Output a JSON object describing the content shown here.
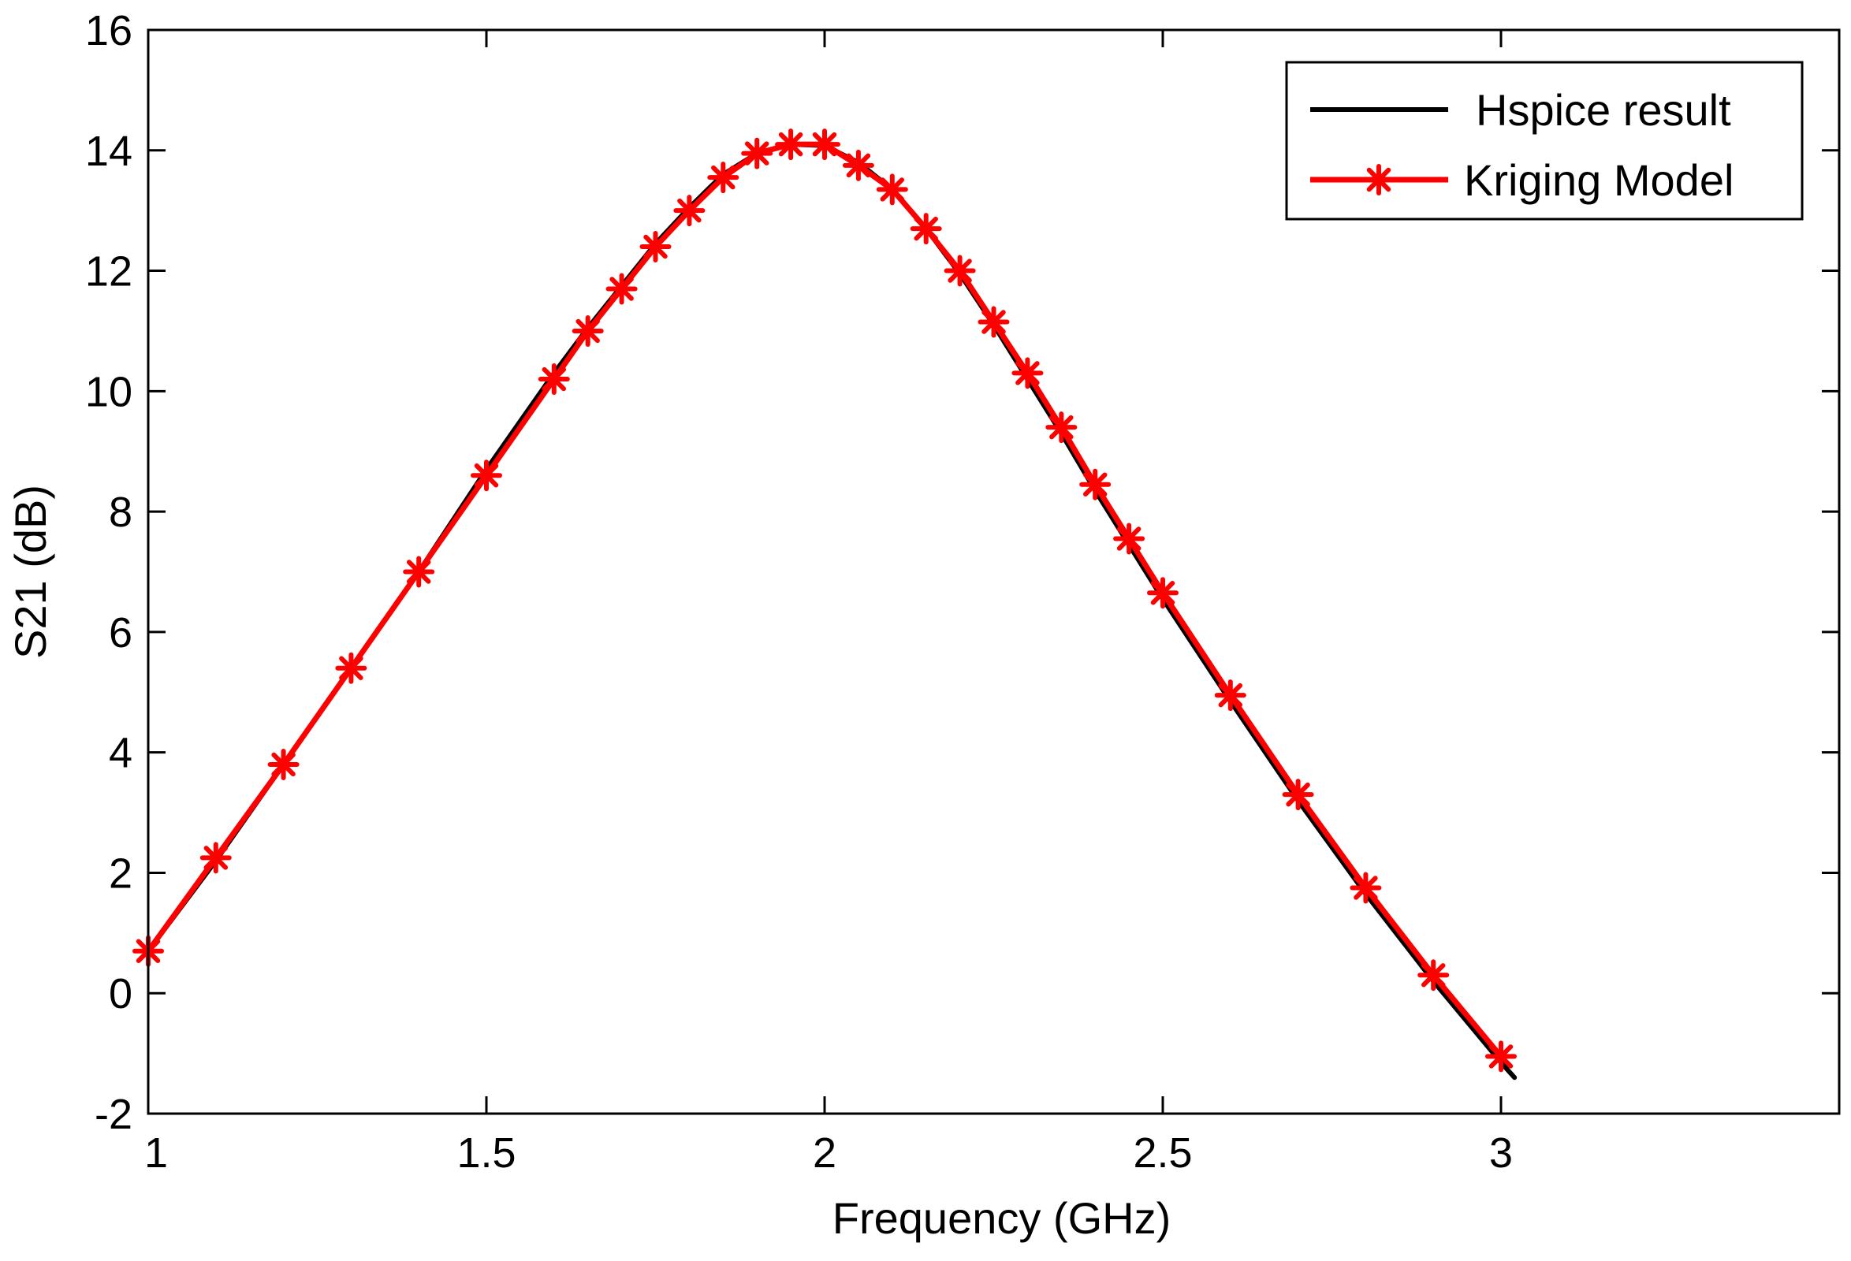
{
  "chart_data": {
    "type": "line",
    "title": "",
    "xlabel": "Frequency (GHz)",
    "ylabel": "S21 (dB)",
    "xlim": [
      1,
      3.5
    ],
    "ylim": [
      -2,
      16
    ],
    "x_ticks": [
      1,
      1.5,
      2,
      2.5,
      3
    ],
    "x_tick_labels": [
      "1",
      "1.5",
      "2",
      "2.5",
      "3"
    ],
    "y_ticks": [
      -2,
      0,
      2,
      4,
      6,
      8,
      10,
      12,
      14,
      16
    ],
    "y_tick_labels": [
      "-2",
      "0",
      "2",
      "4",
      "6",
      "8",
      "10",
      "12",
      "14",
      "16"
    ],
    "grid": false,
    "legend_position": "top-right",
    "series": [
      {
        "name": "Hspice result",
        "color": "#000000",
        "marker": "none",
        "x": [
          1.0,
          1.1,
          1.2,
          1.3,
          1.4,
          1.5,
          1.6,
          1.65,
          1.7,
          1.75,
          1.8,
          1.85,
          1.9,
          1.95,
          2.0,
          2.05,
          2.1,
          2.15,
          2.2,
          2.25,
          2.3,
          2.35,
          2.4,
          2.45,
          2.5,
          2.6,
          2.7,
          2.8,
          2.9,
          3.0,
          3.02
        ],
        "y": [
          0.7,
          2.2,
          3.8,
          5.4,
          7.0,
          8.7,
          10.3,
          11.05,
          11.75,
          12.45,
          13.05,
          13.6,
          13.95,
          14.1,
          14.08,
          13.8,
          13.35,
          12.7,
          11.95,
          11.1,
          10.2,
          9.3,
          8.35,
          7.45,
          6.55,
          4.85,
          3.2,
          1.65,
          0.2,
          -1.15,
          -1.4
        ]
      },
      {
        "name": "Kriging Model",
        "color": "#ff0000",
        "marker": "asterisk",
        "x": [
          1.0,
          1.1,
          1.2,
          1.3,
          1.4,
          1.5,
          1.6,
          1.65,
          1.7,
          1.75,
          1.8,
          1.85,
          1.9,
          1.95,
          2.0,
          2.05,
          2.1,
          2.15,
          2.2,
          2.25,
          2.3,
          2.35,
          2.4,
          2.45,
          2.5,
          2.6,
          2.7,
          2.8,
          2.9,
          3.0
        ],
        "y": [
          0.7,
          2.25,
          3.8,
          5.4,
          7.0,
          8.6,
          10.2,
          11.0,
          11.7,
          12.4,
          13.0,
          13.55,
          13.95,
          14.1,
          14.1,
          13.75,
          13.35,
          12.7,
          12.0,
          11.15,
          10.3,
          9.4,
          8.45,
          7.55,
          6.65,
          4.95,
          3.3,
          1.75,
          0.3,
          -1.05
        ]
      }
    ]
  }
}
